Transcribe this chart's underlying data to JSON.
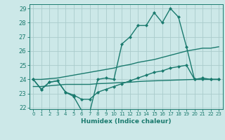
{
  "xlabel": "Humidex (Indice chaleur)",
  "background_color": "#cce8e8",
  "grid_color": "#aacccc",
  "line_color": "#1a7a6e",
  "x_values": [
    0,
    1,
    2,
    3,
    4,
    5,
    6,
    7,
    8,
    9,
    10,
    11,
    12,
    13,
    14,
    15,
    16,
    17,
    18,
    19,
    20,
    21,
    22,
    23
  ],
  "line1": [
    24.0,
    23.3,
    23.8,
    23.9,
    23.1,
    22.8,
    21.8,
    21.7,
    24.0,
    24.1,
    24.0,
    26.5,
    27.0,
    27.8,
    27.8,
    28.7,
    28.0,
    29.0,
    28.4,
    26.3,
    24.0,
    24.1,
    24.0,
    24.0
  ],
  "line2": [
    24.0,
    23.3,
    23.8,
    23.9,
    23.1,
    22.9,
    22.6,
    22.6,
    23.1,
    23.3,
    23.5,
    23.7,
    23.9,
    24.1,
    24.3,
    24.5,
    24.6,
    24.8,
    24.9,
    25.0,
    24.0,
    24.0,
    24.0,
    24.0
  ],
  "line3": [
    24.0,
    24.0,
    24.05,
    24.1,
    24.2,
    24.3,
    24.4,
    24.5,
    24.6,
    24.7,
    24.8,
    24.95,
    25.05,
    25.2,
    25.3,
    25.4,
    25.55,
    25.7,
    25.85,
    26.0,
    26.1,
    26.2,
    26.2,
    26.3
  ],
  "line4": [
    23.5,
    23.5,
    23.55,
    23.6,
    23.65,
    23.65,
    23.65,
    23.65,
    23.7,
    23.72,
    23.75,
    23.78,
    23.8,
    23.85,
    23.88,
    23.9,
    23.92,
    23.94,
    23.96,
    23.98,
    24.0,
    24.0,
    24.0,
    24.0
  ],
  "ylim_min": 21.9,
  "ylim_max": 29.3,
  "xlim_min": -0.5,
  "xlim_max": 23.5,
  "yticks": [
    22,
    23,
    24,
    25,
    26,
    27,
    28,
    29
  ],
  "xticks": [
    0,
    1,
    2,
    3,
    4,
    5,
    6,
    7,
    8,
    9,
    10,
    11,
    12,
    13,
    14,
    15,
    16,
    17,
    18,
    19,
    20,
    21,
    22,
    23
  ],
  "markersize": 2.5,
  "linewidth": 1.0
}
